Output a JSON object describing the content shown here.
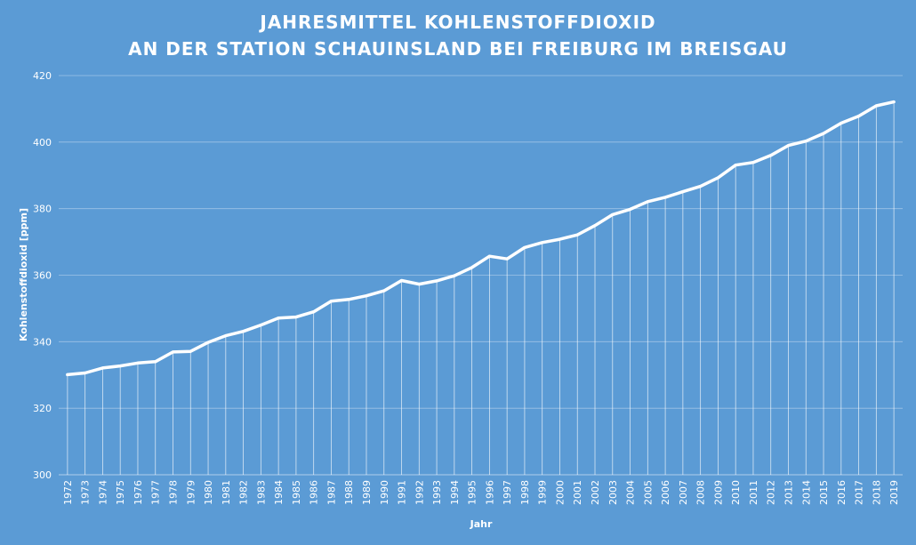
{
  "chart_data": {
    "type": "line",
    "title": [
      "JAHRESMITTEL KOHLENSTOFFDIOXID",
      "AN DER STATION SCHAUINSLAND BEI FREIBURG IM BREISGAU"
    ],
    "xlabel": "Jahr",
    "ylabel": "Kohlenstoffdioxid [ppm]",
    "ylim": [
      300,
      420
    ],
    "yticks": [
      300,
      320,
      340,
      360,
      380,
      400,
      420
    ],
    "grid": true,
    "drop_lines": true,
    "categories": [
      "1972",
      "1973",
      "1974",
      "1975",
      "1976",
      "1977",
      "1978",
      "1979",
      "1980",
      "1981",
      "1982",
      "1983",
      "1984",
      "1985",
      "1986",
      "1987",
      "1988",
      "1989",
      "1990",
      "1991",
      "1992",
      "1993",
      "1994",
      "1995",
      "1996",
      "1997",
      "1998",
      "1999",
      "2000",
      "2001",
      "2002",
      "2003",
      "2004",
      "2005",
      "2006",
      "2007",
      "2008",
      "2009",
      "2010",
      "2011",
      "2012",
      "2013",
      "2014",
      "2015",
      "2016",
      "2017",
      "2018",
      "2019"
    ],
    "values": [
      330.1,
      330.6,
      332.1,
      332.7,
      333.6,
      334.0,
      336.9,
      337.1,
      339.8,
      341.8,
      343.1,
      345.0,
      347.1,
      347.4,
      349.0,
      352.2,
      352.7,
      353.8,
      355.3,
      358.4,
      357.3,
      358.3,
      359.8,
      362.3,
      365.7,
      364.9,
      368.3,
      369.8,
      370.8,
      372.1,
      374.9,
      378.2,
      379.8,
      382.1,
      383.4,
      385.1,
      386.7,
      389.3,
      393.1,
      393.9,
      396.0,
      399.0,
      400.3,
      402.6,
      405.7,
      407.8,
      410.9,
      412.1
    ],
    "colors": {
      "background": "#5b9bd5",
      "line": "#ffffff",
      "grid": "#9ec3e6"
    }
  }
}
